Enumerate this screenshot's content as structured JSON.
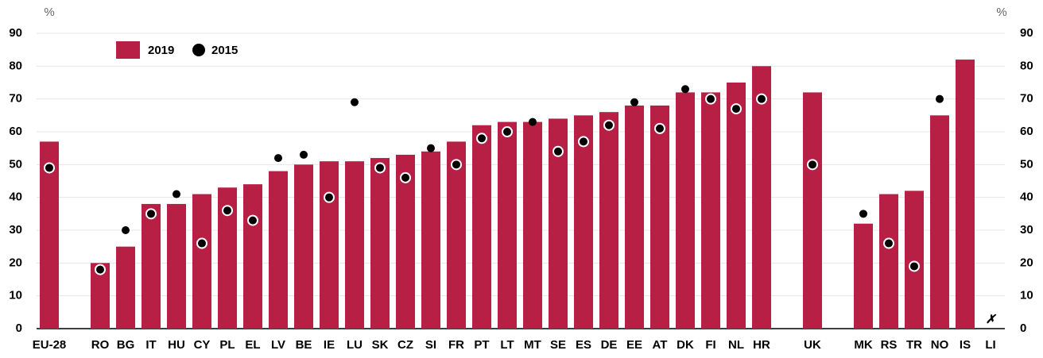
{
  "chart_data": {
    "type": "bar",
    "unit_left": "%",
    "unit_right": "%",
    "categories": [
      "EU-28",
      null,
      "RO",
      "BG",
      "IT",
      "HU",
      "CY",
      "PL",
      "EL",
      "LV",
      "BE",
      "IE",
      "LU",
      "SK",
      "CZ",
      "SI",
      "FR",
      "PT",
      "LT",
      "MT",
      "SE",
      "ES",
      "DE",
      "EE",
      "AT",
      "DK",
      "FI",
      "NL",
      "HR",
      null,
      "UK",
      null,
      "MK",
      "RS",
      "TR",
      "NO",
      "IS",
      "LI"
    ],
    "series": [
      {
        "name": "2019",
        "color": "#b81f45",
        "marker": "bar",
        "values": [
          57,
          null,
          20,
          25,
          38,
          38,
          41,
          43,
          44,
          48,
          50,
          51,
          51,
          52,
          53,
          54,
          57,
          62,
          63,
          63,
          64,
          65,
          66,
          68,
          68,
          72,
          72,
          75,
          80,
          null,
          72,
          null,
          32,
          41,
          42,
          65,
          82,
          null
        ]
      },
      {
        "name": "2015",
        "color": "#000000",
        "marker": "dot",
        "values": [
          49,
          null,
          18,
          30,
          35,
          41,
          26,
          36,
          33,
          52,
          53,
          40,
          69,
          49,
          46,
          55,
          50,
          58,
          60,
          63,
          54,
          57,
          62,
          69,
          61,
          73,
          70,
          67,
          70,
          null,
          50,
          null,
          35,
          26,
          19,
          70,
          null,
          null
        ]
      }
    ],
    "annotations": [
      {
        "category": "LI",
        "text": "✗"
      }
    ],
    "ylim": [
      0,
      90
    ],
    "yticks": [
      0,
      10,
      20,
      30,
      40,
      50,
      60,
      70,
      80,
      90
    ],
    "grid": true
  }
}
